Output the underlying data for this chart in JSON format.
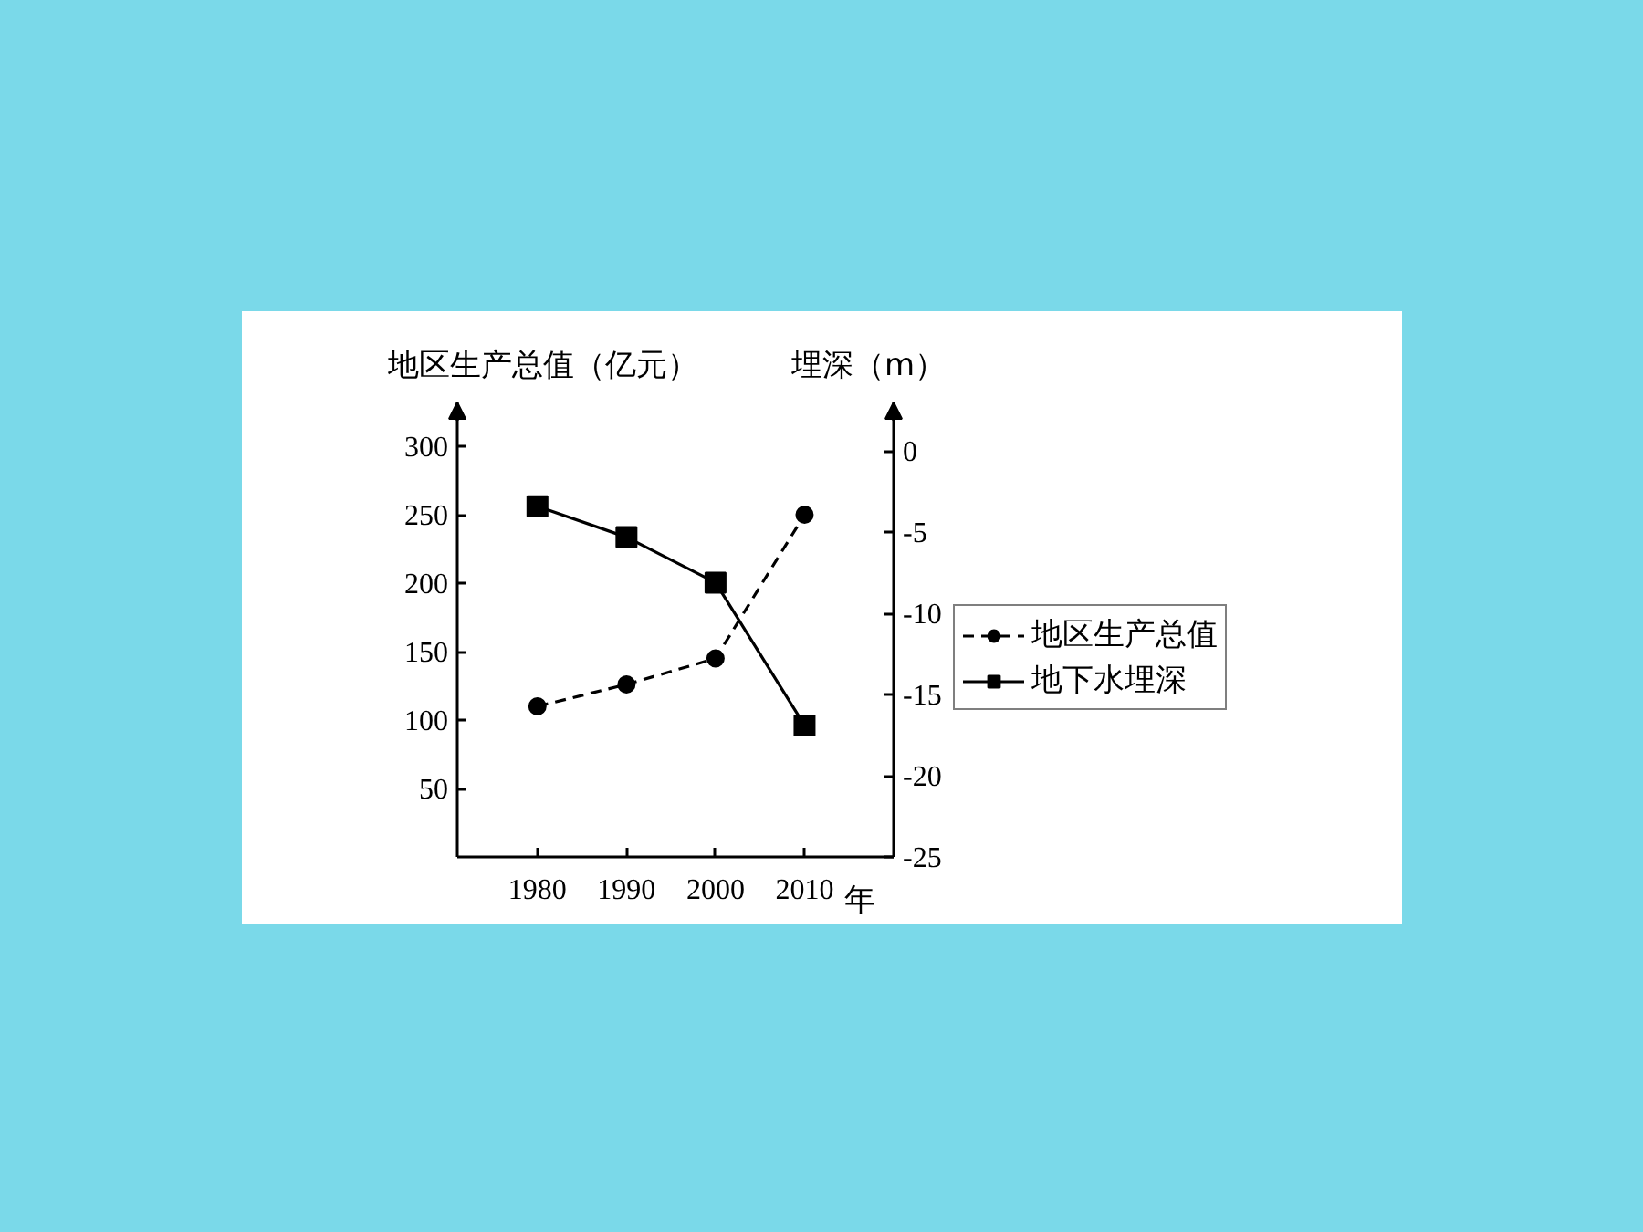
{
  "chart_data": {
    "type": "line",
    "ylabel": "地区生产总值（亿元）",
    "y2label": "埋深（m）",
    "xlabel": "年",
    "x": [
      1980,
      1990,
      2000,
      2010
    ],
    "xlim": [
      1971,
      2020
    ],
    "xticks": [
      1980,
      1990,
      2000,
      2010
    ],
    "ylim": [
      0,
      332
    ],
    "yticks": [
      50,
      100,
      150,
      200,
      250,
      300
    ],
    "y2lim": [
      -25,
      3
    ],
    "y2ticks": [
      0,
      -5,
      -10,
      -15,
      -20,
      -25
    ],
    "series": [
      {
        "name": "地区生产总值",
        "color": "#000000",
        "values": [
          110,
          126,
          145,
          250
        ],
        "marker": "circle",
        "line_style": "dashed"
      },
      {
        "name": "地下水埋深",
        "color": "#000000",
        "values": [
          -3.4,
          -5.3,
          -8.1,
          -16.9
        ],
        "axis": "y2",
        "marker": "square",
        "line_style": "solid"
      }
    ],
    "grid": false,
    "legend": "right"
  }
}
